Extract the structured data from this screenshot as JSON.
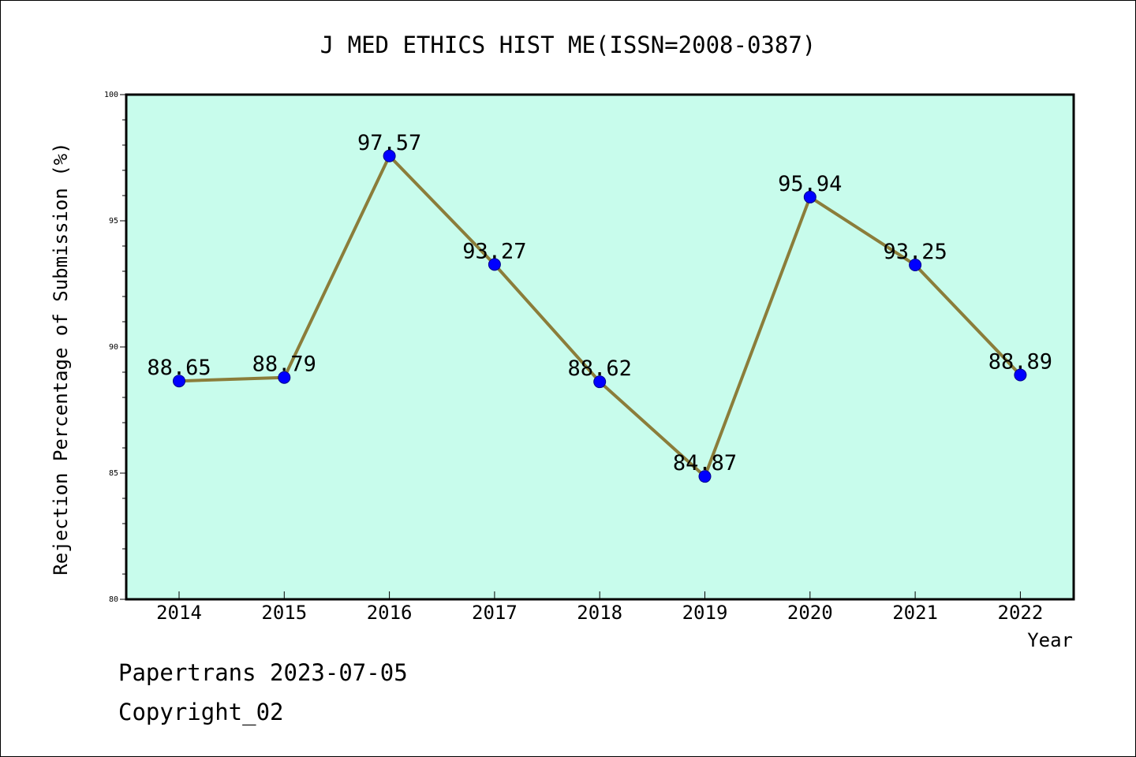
{
  "chart_data": {
    "type": "line",
    "title": "J MED ETHICS HIST ME(ISSN=2008-0387)",
    "xlabel": "Year",
    "ylabel": "Rejection Percentage of Submission (%)",
    "categories": [
      "2014",
      "2015",
      "2016",
      "2017",
      "2018",
      "2019",
      "2020",
      "2021",
      "2022"
    ],
    "series": [
      {
        "values": [
          88.65,
          88.79,
          97.57,
          93.27,
          88.62,
          84.87,
          95.94,
          93.25,
          88.89
        ],
        "labels": [
          "88.65",
          "88.79",
          "97.57",
          "93.27",
          "88.62",
          "84.87",
          "95.94",
          "93.25",
          "88.89"
        ]
      }
    ],
    "ylim": [
      80,
      100
    ],
    "y_ticks": [
      "80",
      "85",
      "90",
      "95",
      "100"
    ],
    "grid": false,
    "colors": {
      "plot_background": "#c8fcec",
      "line": "#8b7d3a",
      "marker": "#0000ff"
    }
  },
  "footer": {
    "line1": "Papertrans 2023-07-05",
    "line2": "Copyright_02"
  }
}
